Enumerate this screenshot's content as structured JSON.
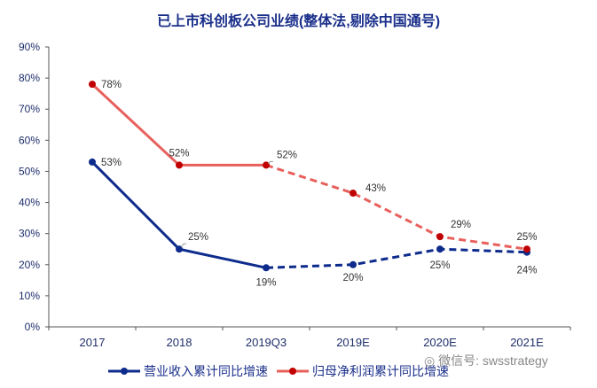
{
  "chart_data": {
    "type": "line",
    "title": "已上市科创板公司业绩(整体法,剔除中国通号)",
    "categories": [
      "2017",
      "2018",
      "2019Q3",
      "2019E",
      "2020E",
      "2021E"
    ],
    "ylim": [
      0,
      90
    ],
    "yticks": [
      "0%",
      "10%",
      "20%",
      "30%",
      "40%",
      "50%",
      "60%",
      "70%",
      "80%",
      "90%"
    ],
    "grid": false,
    "legend": "bottom",
    "series": [
      {
        "name": "营业收入累计同比增速",
        "values": [
          53,
          25,
          19,
          20,
          25,
          24
        ],
        "labels": [
          "53%",
          "25%",
          "19%",
          "20%",
          "25%",
          "24%"
        ],
        "color": "#0d2b8c",
        "dashed_from": "2019Q3"
      },
      {
        "name": "归母净利润累计同比增速",
        "values": [
          78,
          52,
          52,
          43,
          29,
          25
        ],
        "labels": [
          "78%",
          "52%",
          "52%",
          "43%",
          "29%",
          "25%"
        ],
        "color": "#e8605c",
        "marker_color": "#c00000",
        "dashed_from": "2019Q3"
      }
    ]
  },
  "watermark": "微信号: swsstrategy"
}
